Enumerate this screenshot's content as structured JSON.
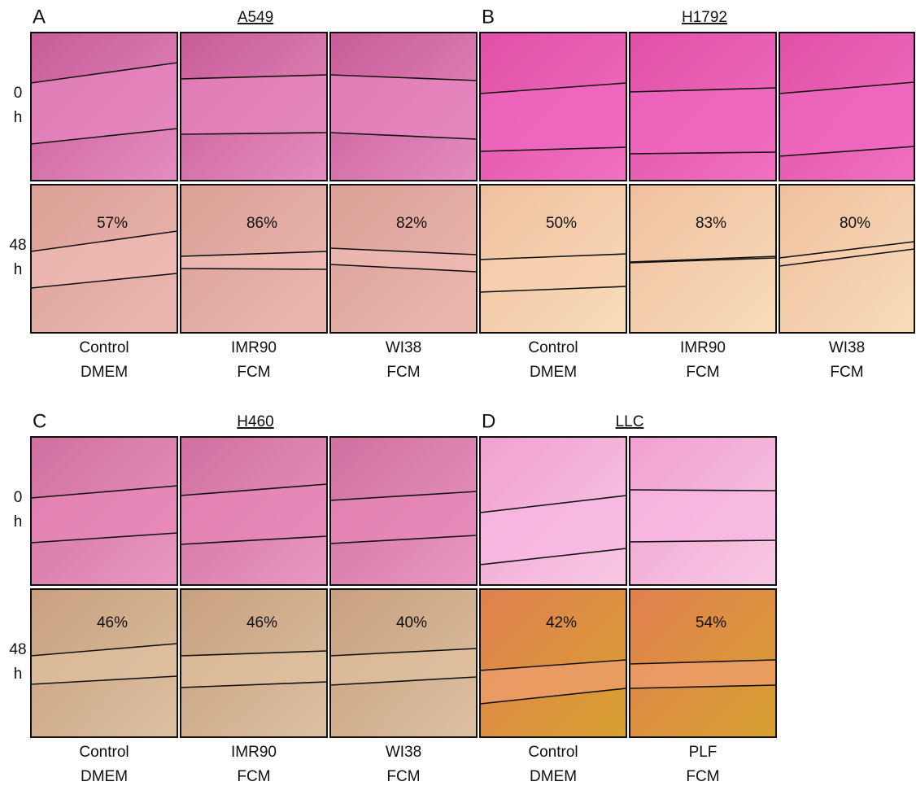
{
  "panels": [
    {
      "letter": "A",
      "title": "A549",
      "row_labels": [
        [
          "0",
          "h"
        ],
        [
          "48",
          "h"
        ]
      ],
      "columns": [
        {
          "label": [
            "Control",
            "DMEM"
          ],
          "percent": "57%"
        },
        {
          "label": [
            "IMR90",
            "FCM"
          ],
          "percent": "86%"
        },
        {
          "label": [
            "WI38",
            "FCM"
          ],
          "percent": "82%"
        }
      ]
    },
    {
      "letter": "B",
      "title": "H1792",
      "columns": [
        {
          "label": [
            "Control",
            "DMEM"
          ],
          "percent": "50%"
        },
        {
          "label": [
            "IMR90",
            "FCM"
          ],
          "percent": "83%"
        },
        {
          "label": [
            "WI38",
            "FCM"
          ],
          "percent": "80%"
        }
      ]
    },
    {
      "letter": "C",
      "title": "H460",
      "row_labels": [
        [
          "0",
          "h"
        ],
        [
          "48",
          "h"
        ]
      ],
      "columns": [
        {
          "label": [
            "Control",
            "DMEM"
          ],
          "percent": "46%"
        },
        {
          "label": [
            "IMR90",
            "FCM"
          ],
          "percent": "46%"
        },
        {
          "label": [
            "WI38",
            "FCM"
          ],
          "percent": "40%"
        }
      ]
    },
    {
      "letter": "D",
      "title": "LLC",
      "columns": [
        {
          "label": [
            "Control",
            "DMEM"
          ],
          "percent": "42%"
        },
        {
          "label": [
            "PLF",
            "FCM"
          ],
          "percent": "54%"
        }
      ]
    }
  ]
}
